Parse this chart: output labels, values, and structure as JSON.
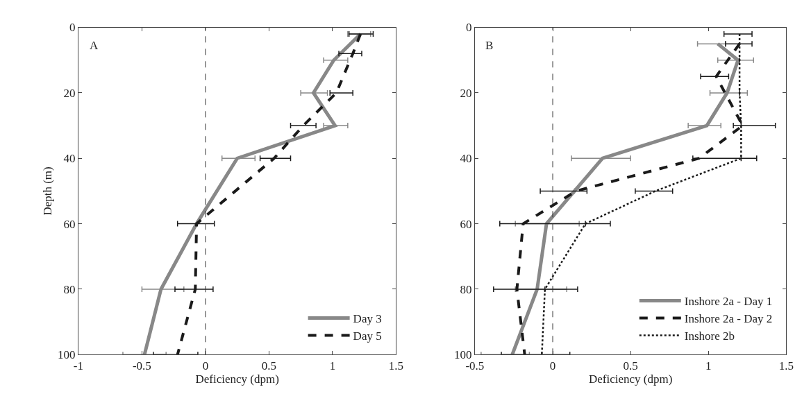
{
  "chart_data": [
    {
      "type": "line",
      "xlabel": "Deficiency (dpm)",
      "ylabel": "Depth (m)",
      "xlim": [
        -1,
        1.5
      ],
      "xticks": [
        -1,
        -0.5,
        0,
        0.5,
        1,
        1.5
      ],
      "ylim": [
        100,
        0
      ],
      "yticks": [
        0,
        20,
        40,
        60,
        80,
        100
      ],
      "legend": "bottom right",
      "annotations": [
        "A"
      ],
      "ref_lines": [
        {
          "axis": "x",
          "value": 0,
          "color": "#333333",
          "line_style": "dashed"
        }
      ],
      "series": [
        {
          "name": "Day 3",
          "color": "#888888",
          "line_style": "solid",
          "x": [
            1.22,
            1.01,
            0.85,
            1.02,
            0.25,
            -0.07,
            -0.35,
            -0.48
          ],
          "values": [
            2,
            10,
            20,
            30,
            40,
            60,
            80,
            100
          ],
          "xerrors": [
            [
              1.12,
              1.3
            ],
            [
              0.93,
              1.12
            ],
            [
              0.75,
              0.96
            ],
            [
              0.93,
              1.12
            ],
            [
              0.13,
              0.39
            ],
            null,
            [
              -0.5,
              -0.17
            ],
            [
              -0.65,
              -0.31
            ]
          ]
        },
        {
          "name": "Day 5",
          "color": "#1a1a1a",
          "line_style": "dashed",
          "x": [
            1.22,
            1.16,
            1.03,
            0.77,
            0.54,
            -0.07,
            -0.08,
            -0.22
          ],
          "values": [
            2,
            8,
            20,
            30,
            40,
            60,
            80,
            100
          ],
          "xerrors": [
            [
              1.13,
              1.32
            ],
            [
              1.05,
              1.23
            ],
            [
              0.98,
              1.16
            ],
            [
              0.67,
              0.87
            ],
            [
              0.43,
              0.67
            ],
            [
              -0.22,
              0.07
            ],
            [
              -0.24,
              0.06
            ],
            [
              -0.41,
              -0.06
            ]
          ]
        }
      ]
    },
    {
      "type": "line",
      "xlabel": "Deficiency (dpm)",
      "xlim": [
        -0.5,
        1.5
      ],
      "xticks": [
        -0.5,
        0,
        0.5,
        1,
        1.5
      ],
      "ylim": [
        100,
        0
      ],
      "yticks": [
        0,
        20,
        40,
        60,
        80,
        100
      ],
      "legend": "bottom right",
      "annotations": [
        "B"
      ],
      "ref_lines": [
        {
          "axis": "x",
          "value": 0,
          "color": "#333333",
          "line_style": "dashed"
        }
      ],
      "series": [
        {
          "name": "Inshore 2a - Day 1",
          "color": "#888888",
          "line_style": "solid",
          "x": [
            1.06,
            1.19,
            1.12,
            0.99,
            0.32,
            0.14,
            -0.04,
            -0.1,
            -0.26
          ],
          "values": [
            5,
            10,
            20,
            30,
            40,
            50,
            60,
            80,
            100
          ],
          "xerrors": [
            [
              0.93,
              1.11
            ],
            [
              1.06,
              1.29
            ],
            [
              1.01,
              1.25
            ],
            [
              0.87,
              1.08
            ],
            [
              0.12,
              0.5
            ],
            null,
            [
              -0.24,
              0.17
            ],
            [
              -0.24,
              0.09
            ],
            [
              -0.46,
              -0.15
            ]
          ]
        },
        {
          "name": "Inshore 2a - Day 2",
          "color": "#1a1a1a",
          "line_style": "dashed",
          "x": [
            1.2,
            1.05,
            1.22,
            0.94,
            0.15,
            -0.19,
            -0.23,
            -0.18
          ],
          "values": [
            5,
            15,
            30,
            40,
            50,
            60,
            80,
            100
          ],
          "xerrors": [
            [
              1.11,
              1.28
            ],
            [
              0.95,
              1.13
            ],
            [
              1.16,
              1.43
            ],
            [
              0.9,
              1.31
            ],
            [
              -0.08,
              0.22
            ],
            [
              -0.34,
              0.37
            ],
            [
              -0.38,
              0.16
            ],
            [
              -0.33,
              0.11
            ]
          ]
        },
        {
          "name": "Inshore 2b",
          "color": "#1a1a1a",
          "line_style": "dotted",
          "x": [
            1.2,
            1.2,
            1.2,
            1.21,
            1.21,
            0.66,
            0.21,
            -0.05,
            -0.07
          ],
          "values": [
            2,
            10,
            20,
            30,
            40,
            50,
            60,
            80,
            100
          ],
          "xerrors": [
            [
              1.1,
              1.28
            ],
            null,
            null,
            null,
            null,
            [
              0.53,
              0.77
            ],
            null,
            null,
            null
          ]
        }
      ]
    }
  ]
}
